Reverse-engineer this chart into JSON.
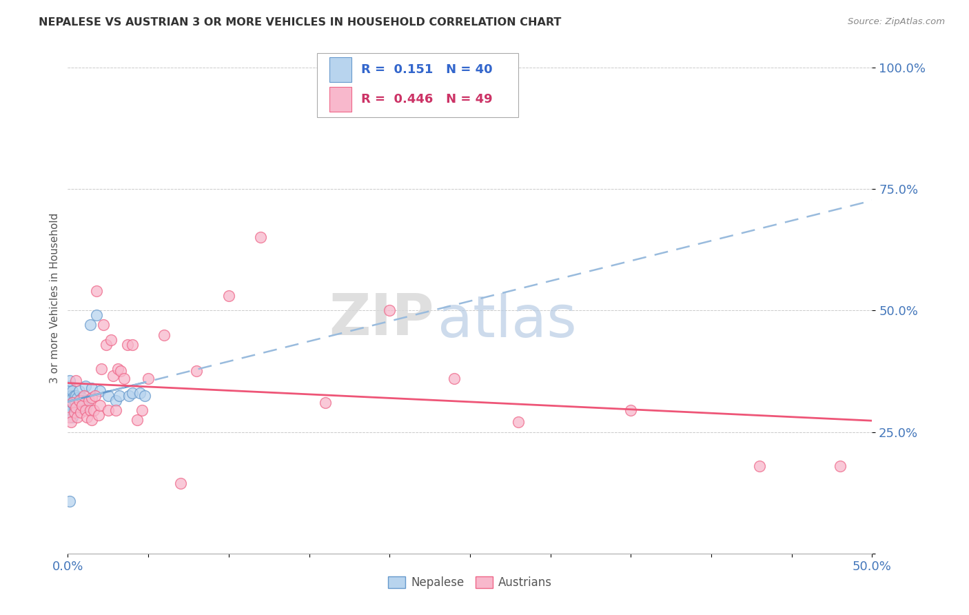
{
  "title": "NEPALESE VS AUSTRIAN 3 OR MORE VEHICLES IN HOUSEHOLD CORRELATION CHART",
  "source": "Source: ZipAtlas.com",
  "ylabel": "3 or more Vehicles in Household",
  "legend_nepalese": "Nepalese",
  "legend_austrians": "Austrians",
  "R_nepalese": 0.151,
  "N_nepalese": 40,
  "R_austrians": 0.446,
  "N_austrians": 49,
  "x_min": 0.0,
  "x_max": 0.5,
  "y_min": 0.0,
  "y_max": 1.05,
  "color_nepalese_fill": "#b8d4ee",
  "color_nepalese_edge": "#6699cc",
  "color_austrians_fill": "#f8b8cc",
  "color_austrians_edge": "#ee6688",
  "color_nepalese_line": "#6699cc",
  "color_austrians_line": "#ee5577",
  "watermark_zip": "ZIP",
  "watermark_atlas": "atlas",
  "background_color": "#ffffff",
  "nepalese_x": [
    0.001,
    0.001,
    0.001,
    0.001,
    0.001,
    0.002,
    0.002,
    0.002,
    0.002,
    0.003,
    0.003,
    0.003,
    0.003,
    0.004,
    0.004,
    0.004,
    0.005,
    0.005,
    0.005,
    0.006,
    0.006,
    0.007,
    0.007,
    0.008,
    0.009,
    0.01,
    0.011,
    0.012,
    0.014,
    0.015,
    0.018,
    0.02,
    0.025,
    0.03,
    0.032,
    0.038,
    0.04,
    0.045,
    0.048,
    0.001
  ],
  "nepalese_y": [
    0.32,
    0.335,
    0.345,
    0.355,
    0.29,
    0.305,
    0.315,
    0.325,
    0.295,
    0.31,
    0.32,
    0.335,
    0.28,
    0.3,
    0.315,
    0.325,
    0.295,
    0.31,
    0.325,
    0.305,
    0.32,
    0.3,
    0.335,
    0.31,
    0.32,
    0.315,
    0.345,
    0.305,
    0.47,
    0.34,
    0.49,
    0.335,
    0.325,
    0.315,
    0.325,
    0.325,
    0.33,
    0.33,
    0.325,
    0.108
  ],
  "austrians_x": [
    0.001,
    0.002,
    0.003,
    0.004,
    0.005,
    0.005,
    0.006,
    0.007,
    0.008,
    0.009,
    0.01,
    0.011,
    0.012,
    0.013,
    0.014,
    0.015,
    0.015,
    0.016,
    0.017,
    0.018,
    0.019,
    0.02,
    0.021,
    0.022,
    0.024,
    0.025,
    0.027,
    0.028,
    0.03,
    0.031,
    0.033,
    0.035,
    0.037,
    0.04,
    0.043,
    0.046,
    0.05,
    0.06,
    0.07,
    0.08,
    0.1,
    0.12,
    0.16,
    0.2,
    0.24,
    0.28,
    0.35,
    0.43,
    0.48
  ],
  "austrians_y": [
    0.28,
    0.27,
    0.31,
    0.29,
    0.3,
    0.355,
    0.28,
    0.315,
    0.29,
    0.305,
    0.325,
    0.295,
    0.28,
    0.315,
    0.295,
    0.275,
    0.32,
    0.295,
    0.325,
    0.54,
    0.285,
    0.305,
    0.38,
    0.47,
    0.43,
    0.295,
    0.44,
    0.365,
    0.295,
    0.38,
    0.375,
    0.36,
    0.43,
    0.43,
    0.275,
    0.295,
    0.36,
    0.45,
    0.145,
    0.375,
    0.53,
    0.65,
    0.31,
    0.5,
    0.36,
    0.27,
    0.295,
    0.18,
    0.18
  ]
}
